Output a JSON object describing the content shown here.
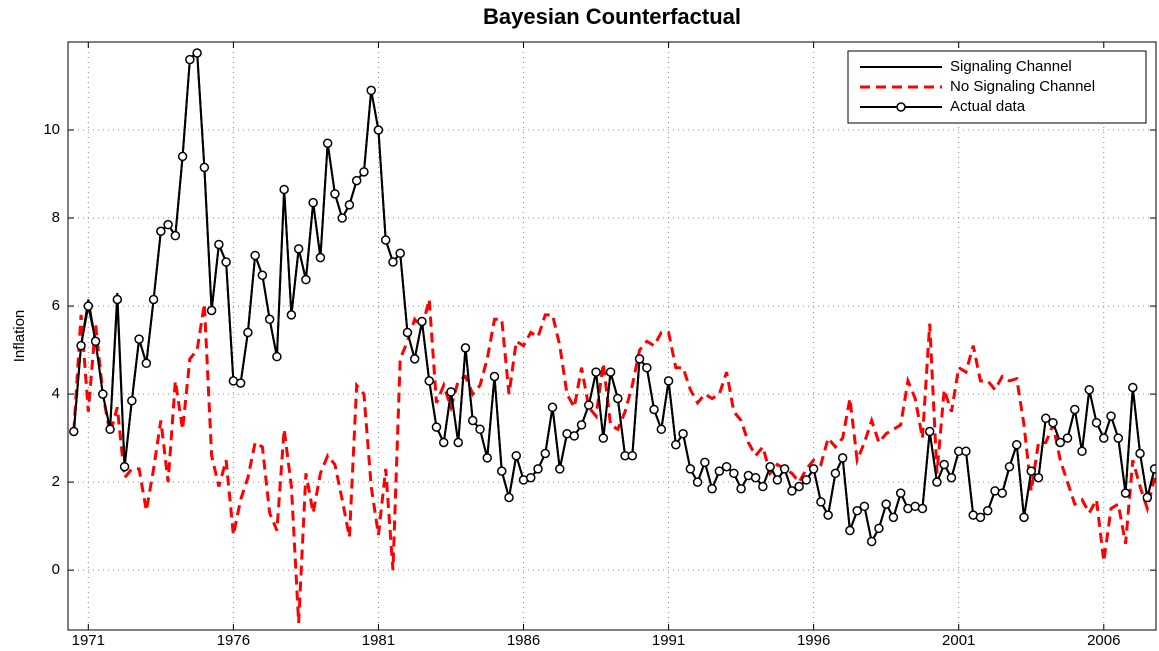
{
  "chart_data": {
    "type": "line",
    "title": "Bayesian Counterfactual",
    "y_label": "Inflation",
    "x": [
      1970.5,
      1970.75,
      1971,
      1971.25,
      1971.5,
      1971.75,
      1972,
      1972.25,
      1972.5,
      1972.75,
      1973,
      1973.25,
      1973.5,
      1973.75,
      1974,
      1974.25,
      1974.5,
      1974.75,
      1975,
      1975.25,
      1975.5,
      1975.75,
      1976,
      1976.25,
      1976.5,
      1976.75,
      1977,
      1977.25,
      1977.5,
      1977.75,
      1978,
      1978.25,
      1978.5,
      1978.75,
      1979,
      1979.25,
      1979.5,
      1979.75,
      1980,
      1980.25,
      1980.5,
      1980.75,
      1981,
      1981.25,
      1981.5,
      1981.75,
      1982,
      1982.25,
      1982.5,
      1982.75,
      1983,
      1983.25,
      1983.5,
      1983.75,
      1984,
      1984.25,
      1984.5,
      1984.75,
      1985,
      1985.25,
      1985.5,
      1985.75,
      1986,
      1986.25,
      1986.5,
      1986.75,
      1987,
      1987.25,
      1987.5,
      1987.75,
      1988,
      1988.25,
      1988.5,
      1988.75,
      1989,
      1989.25,
      1989.5,
      1989.75,
      1990,
      1990.25,
      1990.5,
      1990.75,
      1991,
      1991.25,
      1991.5,
      1991.75,
      1992,
      1992.25,
      1992.5,
      1992.75,
      1993,
      1993.25,
      1993.5,
      1993.75,
      1994,
      1994.25,
      1994.5,
      1994.75,
      1995,
      1995.25,
      1995.5,
      1995.75,
      1996,
      1996.25,
      1996.5,
      1996.75,
      1997,
      1997.25,
      1997.5,
      1997.75,
      1998,
      1998.25,
      1998.5,
      1998.75,
      1999,
      1999.25,
      1999.5,
      1999.75,
      2000,
      2000.25,
      2000.5,
      2000.75,
      2001,
      2001.25,
      2001.5,
      2001.75,
      2002,
      2002.25,
      2002.5,
      2002.75,
      2003,
      2003.25,
      2003.5,
      2003.75,
      2004,
      2004.25,
      2004.5,
      2004.75,
      2005,
      2005.25,
      2005.5,
      2005.75,
      2006,
      2006.25,
      2006.5,
      2006.75,
      2007,
      2007.25,
      2007.5,
      2007.75
    ],
    "series": [
      {
        "name": "Signaling Channel",
        "color": "#000000",
        "linestyle": "solid",
        "marker": "none",
        "values": [
          3.15,
          5.1,
          6.15,
          5.2,
          4.0,
          3.2,
          6.3,
          2.35,
          3.85,
          5.25,
          4.7,
          6.15,
          7.7,
          7.85,
          7.6,
          9.4,
          11.6,
          11.8,
          9.15,
          5.9,
          7.4,
          7.0,
          4.3,
          4.25,
          5.4,
          7.15,
          6.7,
          5.7,
          4.85,
          8.65,
          5.8,
          7.3,
          6.6,
          8.35,
          7.1,
          9.7,
          8.55,
          8.0,
          8.3,
          8.85,
          9.05,
          10.9,
          10.0,
          7.5,
          7.0,
          7.2,
          5.4,
          4.8,
          5.65,
          4.3,
          3.25,
          2.9,
          4.05,
          2.9,
          5.05,
          3.4,
          3.2,
          2.55,
          4.4,
          2.25,
          1.65,
          2.6,
          2.05,
          2.1,
          2.3,
          2.65,
          3.7,
          2.3,
          3.1,
          3.05,
          3.3,
          3.75,
          4.5,
          3.0,
          4.5,
          3.9,
          2.6,
          2.6,
          4.8,
          4.6,
          3.65,
          3.2,
          4.3,
          2.85,
          3.1,
          2.3,
          2.0,
          2.45,
          1.85,
          2.25,
          2.35,
          2.2,
          1.85,
          2.15,
          2.1,
          1.9,
          2.35,
          2.05,
          2.3,
          1.8,
          1.9,
          2.05,
          2.3,
          1.55,
          1.25,
          2.2,
          2.55,
          0.9,
          1.35,
          1.45,
          0.65,
          0.95,
          1.5,
          1.2,
          1.75,
          1.4,
          1.45,
          1.4,
          3.15,
          2.0,
          2.4,
          2.1,
          2.7,
          2.7,
          1.25,
          1.2,
          1.35,
          1.8,
          1.75,
          2.35,
          2.85,
          1.2,
          2.25,
          2.1,
          3.45,
          3.35,
          2.9,
          3.0,
          3.65,
          2.7,
          4.1,
          3.35,
          3.0,
          3.5,
          3.0,
          1.75,
          4.15,
          2.65,
          1.65,
          2.3
        ]
      },
      {
        "name": "No Signaling Channel",
        "color": "#ff0000",
        "linestyle": "dashed",
        "marker": "none",
        "values": [
          3.15,
          5.8,
          3.6,
          5.6,
          4.0,
          3.1,
          3.7,
          2.1,
          2.3,
          2.3,
          1.35,
          2.3,
          3.4,
          2.0,
          4.3,
          3.2,
          4.8,
          5.0,
          6.05,
          2.6,
          1.9,
          2.5,
          0.8,
          1.6,
          2.1,
          2.9,
          2.8,
          1.3,
          0.9,
          3.2,
          1.9,
          -1.2,
          2.2,
          1.3,
          2.2,
          2.6,
          2.4,
          1.6,
          0.75,
          4.2,
          4.0,
          1.9,
          0.8,
          2.3,
          0.0,
          4.8,
          5.2,
          5.7,
          5.5,
          6.15,
          3.8,
          4.2,
          3.7,
          4.3,
          4.4,
          4.0,
          4.2,
          4.8,
          5.7,
          5.7,
          4.0,
          5.2,
          5.1,
          5.4,
          5.3,
          5.8,
          5.8,
          5.1,
          4.0,
          3.7,
          4.6,
          3.7,
          3.5,
          4.7,
          3.3,
          3.2,
          3.6,
          4.2,
          5.0,
          5.2,
          5.1,
          5.4,
          5.4,
          4.6,
          4.6,
          4.1,
          3.8,
          4.0,
          3.9,
          4.0,
          4.5,
          3.6,
          3.4,
          2.9,
          2.6,
          2.8,
          2.2,
          2.4,
          2.3,
          2.2,
          2.0,
          2.3,
          2.5,
          2.4,
          3.0,
          2.8,
          3.0,
          3.9,
          2.5,
          2.9,
          3.4,
          2.9,
          3.1,
          3.2,
          3.3,
          4.3,
          3.9,
          3.0,
          5.6,
          2.2,
          4.1,
          3.6,
          4.6,
          4.5,
          5.1,
          4.3,
          4.3,
          4.1,
          4.4,
          4.3,
          4.35,
          3.3,
          1.8,
          2.9,
          2.9,
          3.3,
          2.5,
          2.0,
          1.5,
          1.6,
          1.3,
          1.6,
          0.2,
          1.4,
          1.5,
          0.6,
          2.5,
          1.9,
          1.4,
          2.1
        ]
      },
      {
        "name": "Actual data",
        "color": "#000000",
        "linestyle": "solid",
        "marker": "circle",
        "values": [
          3.15,
          5.1,
          6.0,
          5.2,
          4.0,
          3.2,
          6.15,
          2.35,
          3.85,
          5.25,
          4.7,
          6.15,
          7.7,
          7.85,
          7.6,
          9.4,
          11.6,
          11.75,
          9.15,
          5.9,
          7.4,
          7.0,
          4.3,
          4.25,
          5.4,
          7.15,
          6.7,
          5.7,
          4.85,
          8.65,
          5.8,
          7.3,
          6.6,
          8.35,
          7.1,
          9.7,
          8.55,
          8.0,
          8.3,
          8.85,
          9.05,
          10.9,
          10.0,
          7.5,
          7.0,
          7.2,
          5.4,
          4.8,
          5.65,
          4.3,
          3.25,
          2.9,
          4.05,
          2.9,
          5.05,
          3.4,
          3.2,
          2.55,
          4.4,
          2.25,
          1.65,
          2.6,
          2.05,
          2.1,
          2.3,
          2.65,
          3.7,
          2.3,
          3.1,
          3.05,
          3.3,
          3.75,
          4.5,
          3.0,
          4.5,
          3.9,
          2.6,
          2.6,
          4.8,
          4.6,
          3.65,
          3.2,
          4.3,
          2.85,
          3.1,
          2.3,
          2.0,
          2.45,
          1.85,
          2.25,
          2.35,
          2.2,
          1.85,
          2.15,
          2.1,
          1.9,
          2.35,
          2.05,
          2.3,
          1.8,
          1.9,
          2.05,
          2.3,
          1.55,
          1.25,
          2.2,
          2.55,
          0.9,
          1.35,
          1.45,
          0.65,
          0.95,
          1.5,
          1.2,
          1.75,
          1.4,
          1.45,
          1.4,
          3.15,
          2.0,
          2.4,
          2.1,
          2.7,
          2.7,
          1.25,
          1.2,
          1.35,
          1.8,
          1.75,
          2.35,
          2.85,
          1.2,
          2.25,
          2.1,
          3.45,
          3.35,
          2.9,
          3.0,
          3.65,
          2.7,
          4.1,
          3.35,
          3.0,
          3.5,
          3.0,
          1.75,
          4.15,
          2.65,
          1.65,
          2.3
        ]
      }
    ],
    "xlim": [
      1970.3,
      2007.8
    ],
    "xticks": [
      1971,
      1976,
      1981,
      1986,
      1991,
      1996,
      2001,
      2006
    ],
    "ylim": [
      -1.36,
      12
    ],
    "yticks": [
      0,
      2,
      4,
      6,
      8,
      10
    ],
    "grid": true,
    "legend": "upper right"
  }
}
